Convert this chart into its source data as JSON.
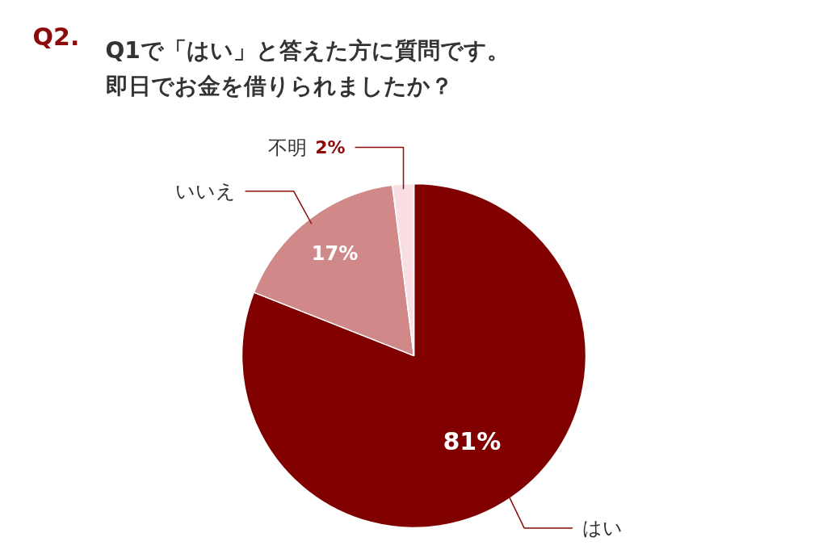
{
  "chart_data": {
    "type": "pie",
    "title": "Q2.",
    "subtitle": [
      "Q1で「はい」と答えた方に質問です。",
      "即日でお金を借りられましたか？"
    ],
    "categories": [
      "はい",
      "いいえ",
      "不明"
    ],
    "values": [
      81,
      17,
      2
    ],
    "colors": [
      "#800000",
      "#d08888",
      "#f9dfe4"
    ],
    "value_labels": [
      "81%",
      "17%",
      "2%"
    ]
  }
}
